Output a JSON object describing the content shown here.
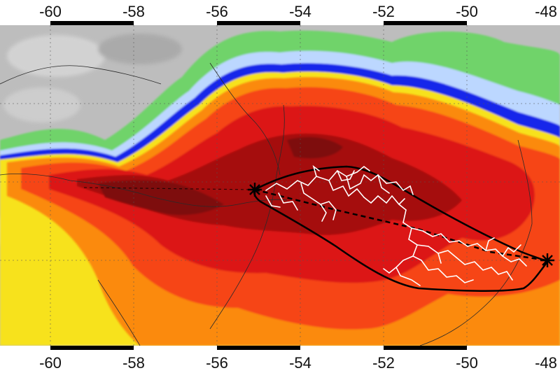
{
  "map": {
    "projection": "equirectangular",
    "longitude_range": [
      -61,
      -48
    ],
    "top_axis": {
      "ticks": [
        -60,
        -58,
        -56,
        -54,
        -52,
        -50,
        -48
      ],
      "labels": [
        "-60",
        "-58",
        "-56",
        "-54",
        "-52",
        "-50",
        "-48"
      ]
    },
    "bottom_axis": {
      "ticks": [
        -60,
        -58,
        -56,
        -54,
        -52,
        -50,
        -48
      ],
      "labels": [
        "-60",
        "-58",
        "-56",
        "-54",
        "-52",
        "-50",
        "-48"
      ]
    },
    "gridlines": "dashed",
    "layers": [
      "infrared-cloud-top-temperature",
      "country-borders",
      "coastline"
    ],
    "palette": {
      "background_gray": "#b9b9b9",
      "light_gray": "#dadada",
      "green": "#6fd36a",
      "light_blue": "#bcd7ff",
      "blue": "#1727ea",
      "yellow": "#f7e21a",
      "orange": "#fb8a10",
      "red_orange": "#f64515",
      "red": "#dc1412",
      "dark_red": "#a50b10",
      "darkest": "#7e0b0e",
      "lightning": "#ffffff",
      "outline": "#000000"
    },
    "flash": {
      "endpoints": [
        "west-star-marker",
        "east-star-marker"
      ],
      "path_style": "dashed-line",
      "hull_style": "solid-outline",
      "channel_color": "#ffffff"
    }
  }
}
